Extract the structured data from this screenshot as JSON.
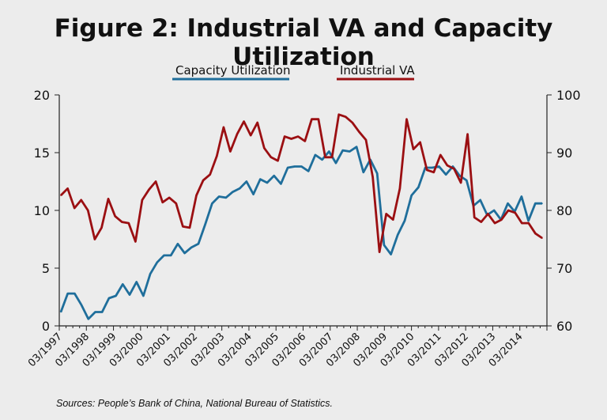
{
  "chart_data": {
    "type": "line",
    "title": "Figure 2: Industrial VA and Capacity Utilization",
    "source": "Sources: People’s Bank of China, National Bureau of Statistics.",
    "x_labels": [
      "03/1997",
      "03/1998",
      "03/1999",
      "03/2000",
      "03/2001",
      "03/2002",
      "03/2003",
      "03/2004",
      "03/2005",
      "03/2006",
      "03/2007",
      "03/2008",
      "03/2009",
      "03/2010",
      "03/2011",
      "03/2012",
      "03/2013",
      "03/2014"
    ],
    "left_axis": {
      "ticks": [
        "0",
        "5",
        "10",
        "15",
        "20"
      ],
      "ylim": [
        0,
        20
      ]
    },
    "right_axis": {
      "ticks": [
        "60",
        "70",
        "80",
        "90",
        "100"
      ],
      "ylim": [
        60,
        100
      ]
    },
    "legend_position": "top",
    "grid": false,
    "colors": {
      "capacity": "#1f6e9b",
      "industrial": "#9b0f12"
    },
    "series": [
      {
        "name": "Capacity Utilization",
        "axis": "right",
        "values": [
          62.4,
          65.6,
          65.6,
          63.6,
          61.2,
          62.4,
          62.4,
          64.8,
          65.2,
          67.2,
          65.4,
          67.6,
          65.2,
          69.0,
          71.0,
          72.2,
          72.2,
          74.2,
          72.6,
          73.6,
          74.2,
          77.6,
          81.2,
          82.4,
          82.2,
          83.2,
          83.8,
          85.0,
          82.8,
          85.4,
          84.8,
          86.0,
          84.6,
          87.4,
          87.6,
          87.6,
          86.8,
          89.6,
          88.8,
          90.2,
          88.2,
          90.4,
          90.2,
          91.0,
          86.6,
          88.8,
          86.4,
          74.0,
          72.4,
          75.8,
          78.2,
          82.6,
          84.0,
          87.4,
          87.4,
          87.6,
          86.2,
          87.6,
          86.0,
          85.2,
          80.8,
          81.8,
          79.2,
          80.0,
          78.4,
          81.2,
          79.8,
          82.4,
          78.2,
          81.2,
          81.2
        ]
      },
      {
        "name": "Industrial VA",
        "axis": "left",
        "values": [
          11.3,
          11.9,
          10.2,
          10.9,
          10.0,
          7.5,
          8.5,
          11.0,
          9.5,
          9.0,
          8.9,
          7.3,
          10.9,
          11.8,
          12.5,
          10.7,
          11.1,
          10.6,
          8.6,
          8.5,
          11.3,
          12.6,
          13.1,
          14.7,
          17.2,
          15.1,
          16.6,
          17.7,
          16.5,
          17.6,
          15.4,
          14.6,
          14.3,
          16.4,
          16.2,
          16.4,
          16.0,
          17.9,
          17.9,
          14.6,
          14.6,
          18.3,
          18.1,
          17.6,
          16.8,
          16.1,
          12.9,
          6.4,
          9.7,
          9.2,
          11.9,
          17.9,
          15.3,
          15.9,
          13.5,
          13.3,
          14.8,
          13.9,
          13.6,
          12.4,
          16.6,
          9.4,
          9.0,
          9.7,
          8.9,
          9.2,
          10.0,
          9.8,
          8.9,
          8.9,
          8.0,
          7.6
        ]
      }
    ]
  }
}
